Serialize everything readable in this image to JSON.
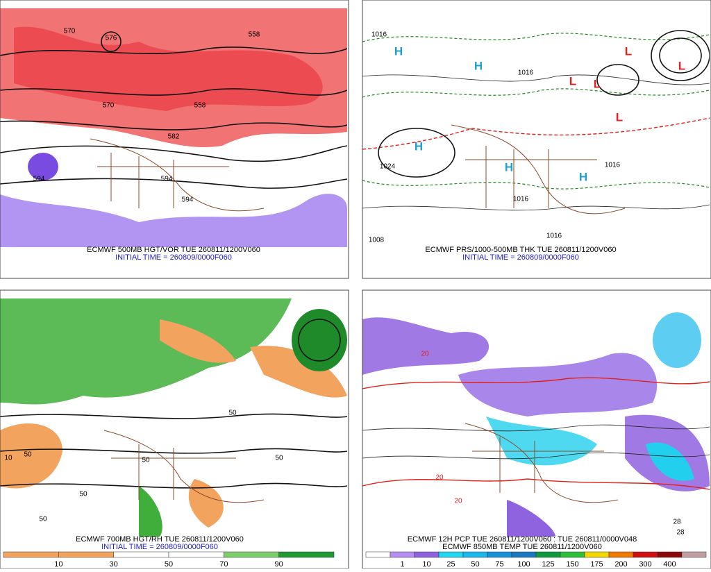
{
  "panels": [
    {
      "caption": "ECMWF 500MB HGT/VOR TUE 260811/1200V060",
      "initial_time": "INITIAL TIME = 260809/0000F060",
      "labels": [
        "570",
        "576",
        "558",
        "558",
        "570",
        "582",
        "594",
        "594",
        "594"
      ]
    },
    {
      "caption": "ECMWF PRS/1000-500MB THK TUE 260811/1200V060",
      "initial_time": "INITIAL TIME = 260809/0000F060",
      "labels": [
        "1016",
        "1024",
        "1016",
        "1016",
        "1008",
        "1016",
        "1016"
      ],
      "highs": [
        "H",
        "H",
        "H",
        "H",
        "H"
      ],
      "lows": [
        "L",
        "L",
        "L",
        "L",
        "L"
      ]
    },
    {
      "caption": "ECMWF 700MB HGT/RH TUE 260811/1200V060",
      "initial_time": "INITIAL TIME = 260809/0000F060",
      "labels": [
        "10",
        "50",
        "50",
        "50",
        "50",
        "50",
        "50"
      ]
    },
    {
      "captions": [
        "ECMWF 12H PCP TUE 260811/1200V060 : TUE 260811/0000V048",
        "ECMWF 850MB TEMP TUE 260811/1200V060"
      ],
      "labels": [
        "20",
        "20",
        "20",
        "28",
        "28"
      ]
    }
  ],
  "colorbars": [
    {
      "labels": [
        10,
        30,
        50,
        70,
        90
      ],
      "colors": [
        "#f2a35e",
        "#f2a35e",
        "#ffffff",
        "#ffffff",
        "#7ccf6a",
        "#1e9a32"
      ]
    },
    {
      "labels": [
        1,
        10,
        25,
        50,
        75,
        100,
        125,
        150,
        175,
        200,
        300,
        400
      ],
      "colors": [
        "#ffffff",
        "#b48ef0",
        "#8f62df",
        "#22d8f0",
        "#1ab8ec",
        "#1691d8",
        "#1a78c0",
        "#0f9a3c",
        "#2fbf3a",
        "#f2d800",
        "#f07a00",
        "#d01010",
        "#8a0a0a",
        "#c0a0a0"
      ]
    }
  ]
}
